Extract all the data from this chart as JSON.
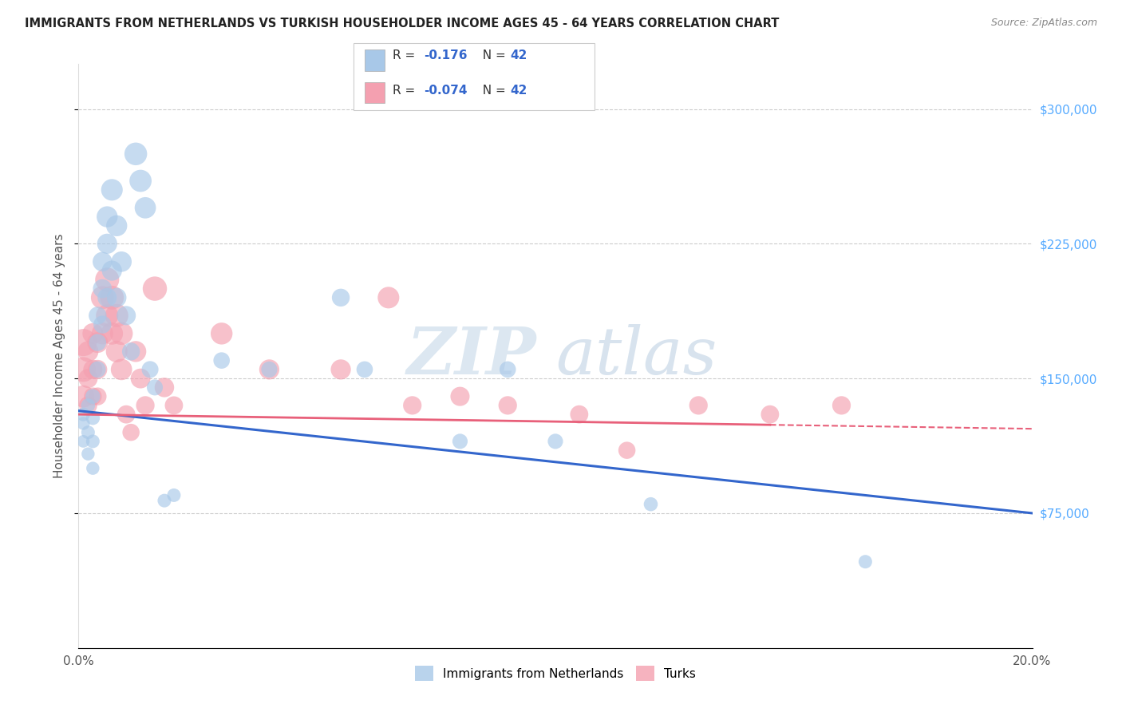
{
  "title": "IMMIGRANTS FROM NETHERLANDS VS TURKISH HOUSEHOLDER INCOME AGES 45 - 64 YEARS CORRELATION CHART",
  "source": "Source: ZipAtlas.com",
  "ylabel": "Householder Income Ages 45 - 64 years",
  "xlim": [
    0.0,
    0.2
  ],
  "ylim": [
    0,
    325000
  ],
  "yticks": [
    75000,
    150000,
    225000,
    300000
  ],
  "ytick_labels": [
    "$75,000",
    "$150,000",
    "$225,000",
    "$300,000"
  ],
  "xticks": [
    0.0,
    0.05,
    0.1,
    0.15,
    0.2
  ],
  "xtick_labels": [
    "0.0%",
    "",
    "",
    "",
    "20.0%"
  ],
  "background_color": "#ffffff",
  "grid_color": "#cccccc",
  "netherlands_color": "#a8c8e8",
  "turks_color": "#f4a0b0",
  "netherlands_line_color": "#3366cc",
  "turks_line_color": "#e8607a",
  "watermark_color": "#d8e8f0",
  "nl_r": "-0.176",
  "nl_n": "42",
  "tk_r": "-0.074",
  "tk_n": "42",
  "netherlands_x": [
    0.001,
    0.001,
    0.001,
    0.002,
    0.002,
    0.002,
    0.003,
    0.003,
    0.003,
    0.003,
    0.004,
    0.004,
    0.004,
    0.005,
    0.005,
    0.005,
    0.006,
    0.006,
    0.006,
    0.007,
    0.007,
    0.008,
    0.008,
    0.009,
    0.01,
    0.011,
    0.012,
    0.013,
    0.014,
    0.015,
    0.016,
    0.018,
    0.02,
    0.03,
    0.04,
    0.055,
    0.06,
    0.08,
    0.09,
    0.1,
    0.12,
    0.165
  ],
  "netherlands_y": [
    130000,
    125000,
    115000,
    135000,
    120000,
    108000,
    140000,
    128000,
    115000,
    100000,
    185000,
    170000,
    155000,
    215000,
    200000,
    180000,
    240000,
    225000,
    195000,
    255000,
    210000,
    235000,
    195000,
    215000,
    185000,
    165000,
    275000,
    260000,
    245000,
    155000,
    145000,
    82000,
    85000,
    160000,
    155000,
    195000,
    155000,
    115000,
    155000,
    115000,
    80000,
    48000
  ],
  "netherlands_size": [
    150,
    140,
    130,
    160,
    150,
    140,
    180,
    160,
    150,
    140,
    260,
    240,
    220,
    310,
    290,
    260,
    360,
    330,
    300,
    380,
    330,
    360,
    310,
    340,
    300,
    260,
    420,
    400,
    370,
    230,
    210,
    150,
    150,
    220,
    210,
    260,
    220,
    190,
    220,
    190,
    160,
    150
  ],
  "turks_x": [
    0.001,
    0.001,
    0.001,
    0.002,
    0.002,
    0.002,
    0.003,
    0.003,
    0.003,
    0.004,
    0.004,
    0.004,
    0.005,
    0.005,
    0.006,
    0.006,
    0.007,
    0.007,
    0.008,
    0.008,
    0.009,
    0.009,
    0.01,
    0.011,
    0.012,
    0.013,
    0.014,
    0.016,
    0.018,
    0.02,
    0.03,
    0.04,
    0.055,
    0.065,
    0.07,
    0.08,
    0.09,
    0.105,
    0.115,
    0.13,
    0.145,
    0.16
  ],
  "turks_y": [
    170000,
    155000,
    140000,
    165000,
    150000,
    135000,
    175000,
    155000,
    140000,
    170000,
    155000,
    140000,
    195000,
    175000,
    205000,
    185000,
    195000,
    175000,
    185000,
    165000,
    175000,
    155000,
    130000,
    120000,
    165000,
    150000,
    135000,
    200000,
    145000,
    135000,
    175000,
    155000,
    155000,
    195000,
    135000,
    140000,
    135000,
    130000,
    110000,
    135000,
    130000,
    135000
  ],
  "turks_size": [
    600,
    500,
    400,
    350,
    300,
    270,
    350,
    300,
    260,
    350,
    300,
    260,
    430,
    380,
    470,
    410,
    460,
    400,
    440,
    380,
    420,
    370,
    270,
    240,
    360,
    320,
    280,
    480,
    310,
    270,
    390,
    330,
    330,
    380,
    280,
    300,
    280,
    270,
    240,
    280,
    270,
    280
  ]
}
